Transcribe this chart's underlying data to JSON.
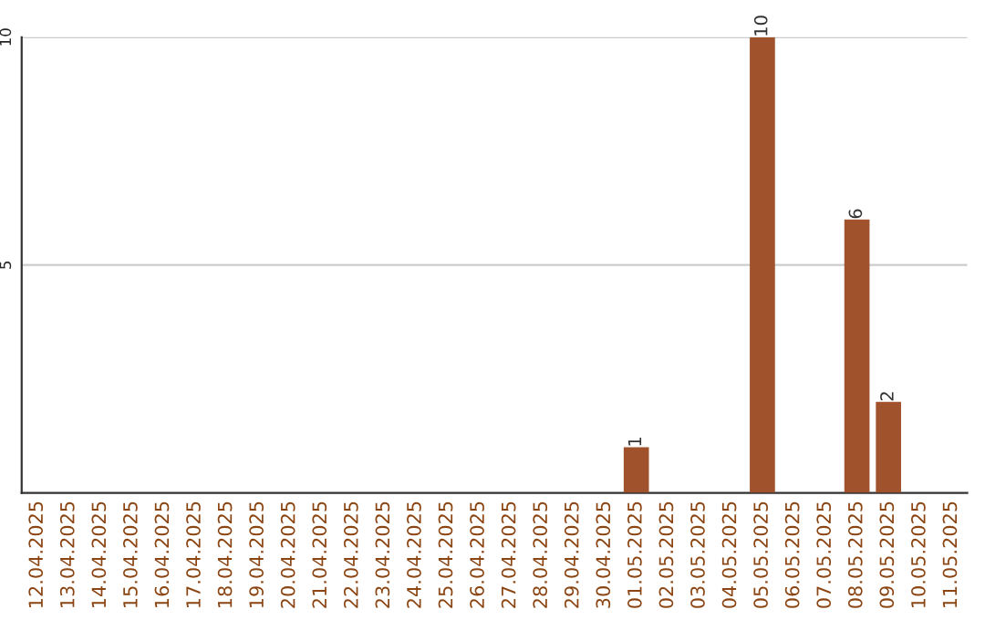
{
  "chart_data": {
    "type": "bar",
    "categories": [
      "12.04.2025",
      "13.04.2025",
      "14.04.2025",
      "15.04.2025",
      "16.04.2025",
      "17.04.2025",
      "18.04.2025",
      "19.04.2025",
      "20.04.2025",
      "21.04.2025",
      "22.04.2025",
      "23.04.2025",
      "24.04.2025",
      "25.04.2025",
      "26.04.2025",
      "27.04.2025",
      "28.04.2025",
      "29.04.2025",
      "30.04.2025",
      "01.05.2025",
      "02.05.2025",
      "03.05.2025",
      "04.05.2025",
      "05.05.2025",
      "06.05.2025",
      "07.05.2025",
      "08.05.2025",
      "09.05.2025",
      "10.05.2025",
      "11.05.2025"
    ],
    "values": [
      0,
      0,
      0,
      0,
      0,
      0,
      0,
      0,
      0,
      0,
      0,
      0,
      0,
      0,
      0,
      0,
      0,
      0,
      0,
      1,
      0,
      0,
      0,
      10,
      0,
      0,
      6,
      2,
      0,
      0
    ],
    "value_labels": [
      null,
      null,
      null,
      null,
      null,
      null,
      null,
      null,
      null,
      null,
      null,
      null,
      null,
      null,
      null,
      null,
      null,
      null,
      null,
      "1",
      null,
      null,
      null,
      "10",
      null,
      null,
      "6",
      "2",
      null,
      null
    ],
    "color": "#a0522d",
    "ylim": [
      0,
      10
    ],
    "yticks": [
      5,
      10
    ],
    "grid": "y"
  }
}
